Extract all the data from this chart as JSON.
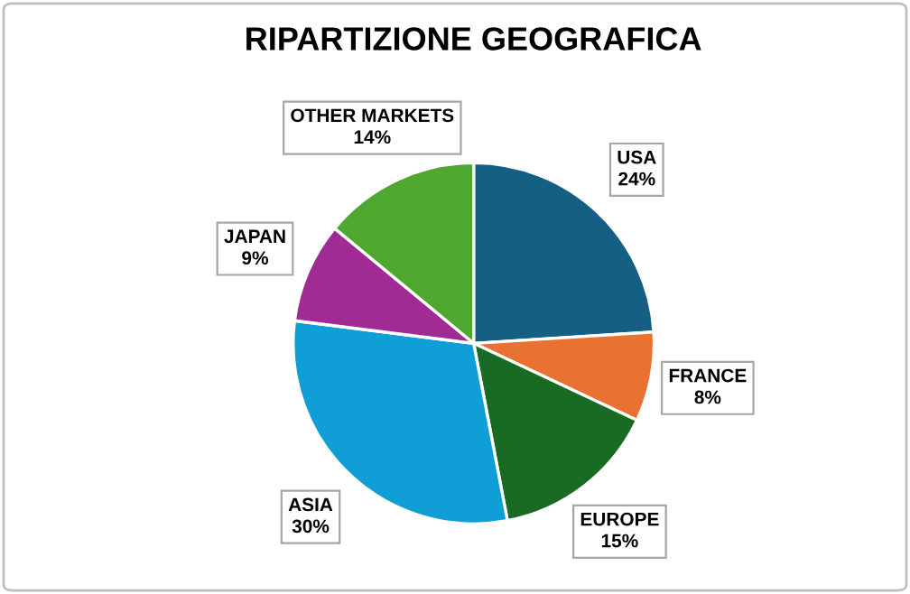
{
  "chart_data": {
    "type": "pie",
    "title": "RIPARTIZIONE GEOGRAFICA",
    "categories": [
      "USA",
      "FRANCE",
      "EUROPE",
      "ASIA",
      "JAPAN",
      "OTHER MARKETS"
    ],
    "values": [
      24,
      8,
      15,
      30,
      9,
      14
    ],
    "value_labels": [
      "24%",
      "8%",
      "15%",
      "30%",
      "9%",
      "14%"
    ],
    "colors": [
      "#156082",
      "#e97132",
      "#196b24",
      "#0f9ed5",
      "#a02b93",
      "#4ea72e"
    ],
    "legend": false
  }
}
